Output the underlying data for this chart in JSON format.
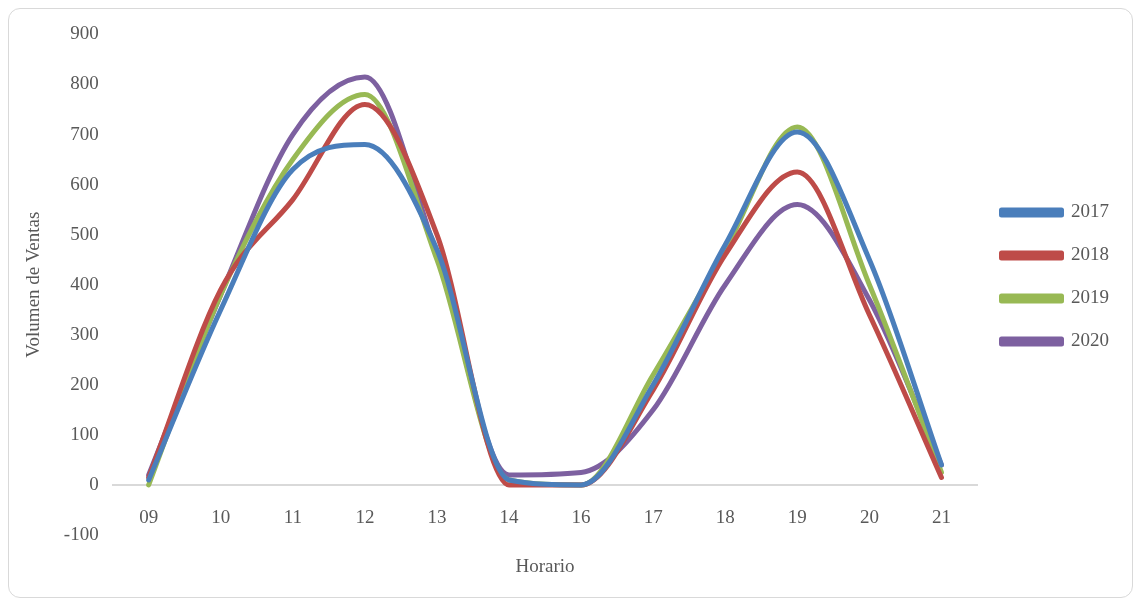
{
  "chart_data": {
    "type": "line",
    "xlabel": "Horario",
    "ylabel": "Volumen de Ventas",
    "categories": [
      "09",
      "10",
      "11",
      "12",
      "13",
      "14",
      "16",
      "17",
      "18",
      "19",
      "20",
      "21"
    ],
    "series": [
      {
        "name": "2017",
        "color": "#4a7ebb",
        "values": [
          10,
          350,
          630,
          680,
          470,
          10,
          0,
          200,
          480,
          705,
          450,
          40
        ]
      },
      {
        "name": "2018",
        "color": "#be4b48",
        "values": [
          15,
          390,
          570,
          760,
          500,
          0,
          0,
          190,
          460,
          625,
          340,
          15
        ]
      },
      {
        "name": "2019",
        "color": "#98b954",
        "values": [
          0,
          380,
          650,
          780,
          450,
          10,
          0,
          220,
          470,
          715,
          400,
          25
        ]
      },
      {
        "name": "2020",
        "color": "#7d60a0",
        "values": [
          20,
          380,
          700,
          815,
          460,
          20,
          25,
          150,
          400,
          560,
          370,
          40
        ]
      }
    ],
    "ylim": [
      -100,
      900
    ],
    "yticks": [
      -100,
      0,
      100,
      200,
      300,
      400,
      500,
      600,
      700,
      800,
      900
    ],
    "grid": false,
    "legend": "right",
    "line_style": "solid",
    "marker": "none"
  }
}
